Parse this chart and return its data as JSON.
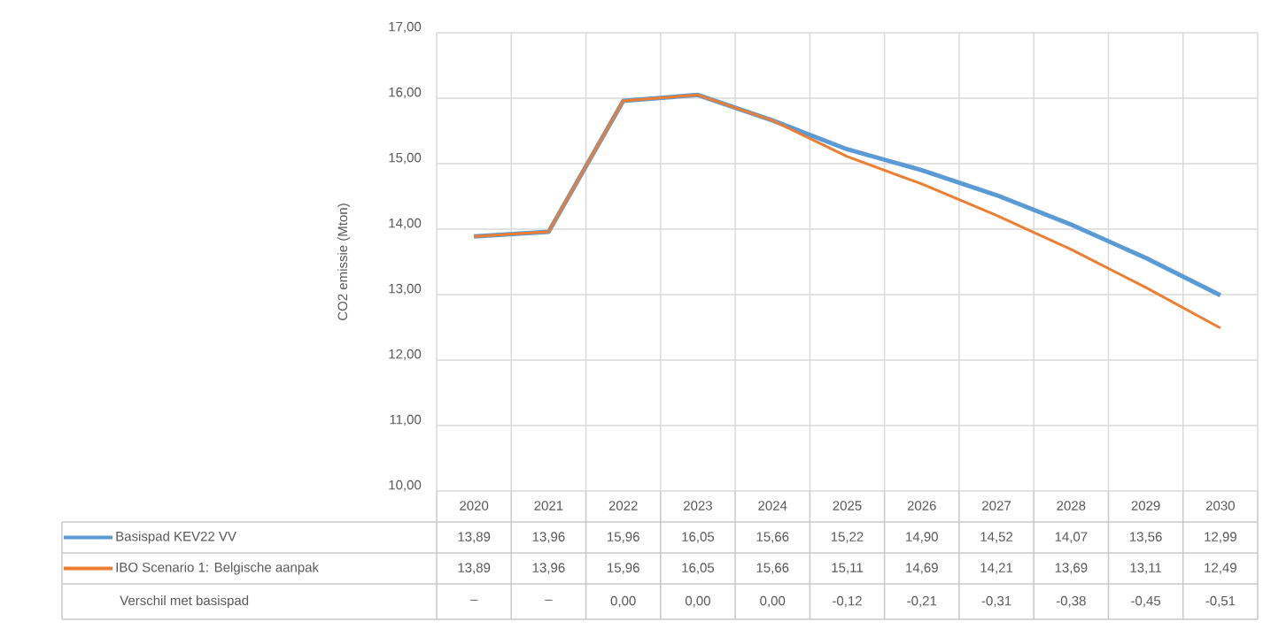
{
  "chart_data": {
    "type": "line",
    "ylabel": "CO2 emissie (Mton)",
    "categories": [
      "2020",
      "2021",
      "2022",
      "2023",
      "2024",
      "2025",
      "2026",
      "2027",
      "2028",
      "2029",
      "2030"
    ],
    "ylim": [
      10,
      17
    ],
    "yticks": [
      {
        "value": 10,
        "label": "10,00"
      },
      {
        "value": 11,
        "label": "11,00"
      },
      {
        "value": 12,
        "label": "12,00"
      },
      {
        "value": 13,
        "label": "13,00"
      },
      {
        "value": 14,
        "label": "14,00"
      },
      {
        "value": 15,
        "label": "15,00"
      },
      {
        "value": 16,
        "label": "16,00"
      },
      {
        "value": 17,
        "label": "17,00"
      }
    ],
    "series": [
      {
        "name": "Basispad KEV22 VV",
        "color": "#5b9bd5",
        "values": [
          13.89,
          13.96,
          15.96,
          16.05,
          15.66,
          15.22,
          14.9,
          14.52,
          14.07,
          13.56,
          12.99
        ],
        "value_labels": [
          "13,89",
          "13,96",
          "15,96",
          "16,05",
          "15,66",
          "15,22",
          "14,90",
          "14,52",
          "14,07",
          "13,56",
          "12,99"
        ]
      },
      {
        "name": "IBO Scenario 1: Belgische aanpak",
        "color": "#ed7d31",
        "values": [
          13.89,
          13.96,
          15.96,
          16.05,
          15.66,
          15.11,
          14.69,
          14.21,
          13.69,
          13.11,
          12.49
        ],
        "value_labels": [
          "13,89",
          "13,96",
          "15,96",
          "16,05",
          "15,66",
          "15,11",
          "14,69",
          "14,21",
          "13,69",
          "13,11",
          "12,49"
        ]
      }
    ],
    "annotations": [
      "Verschil met basispad",
      "–",
      "–",
      "0,00",
      "0,00",
      "0,00",
      "-0,12",
      "-0,21",
      "-0,31",
      "-0,38",
      "-0,45",
      "-0,51"
    ],
    "grid": true,
    "legend": "bottom"
  }
}
